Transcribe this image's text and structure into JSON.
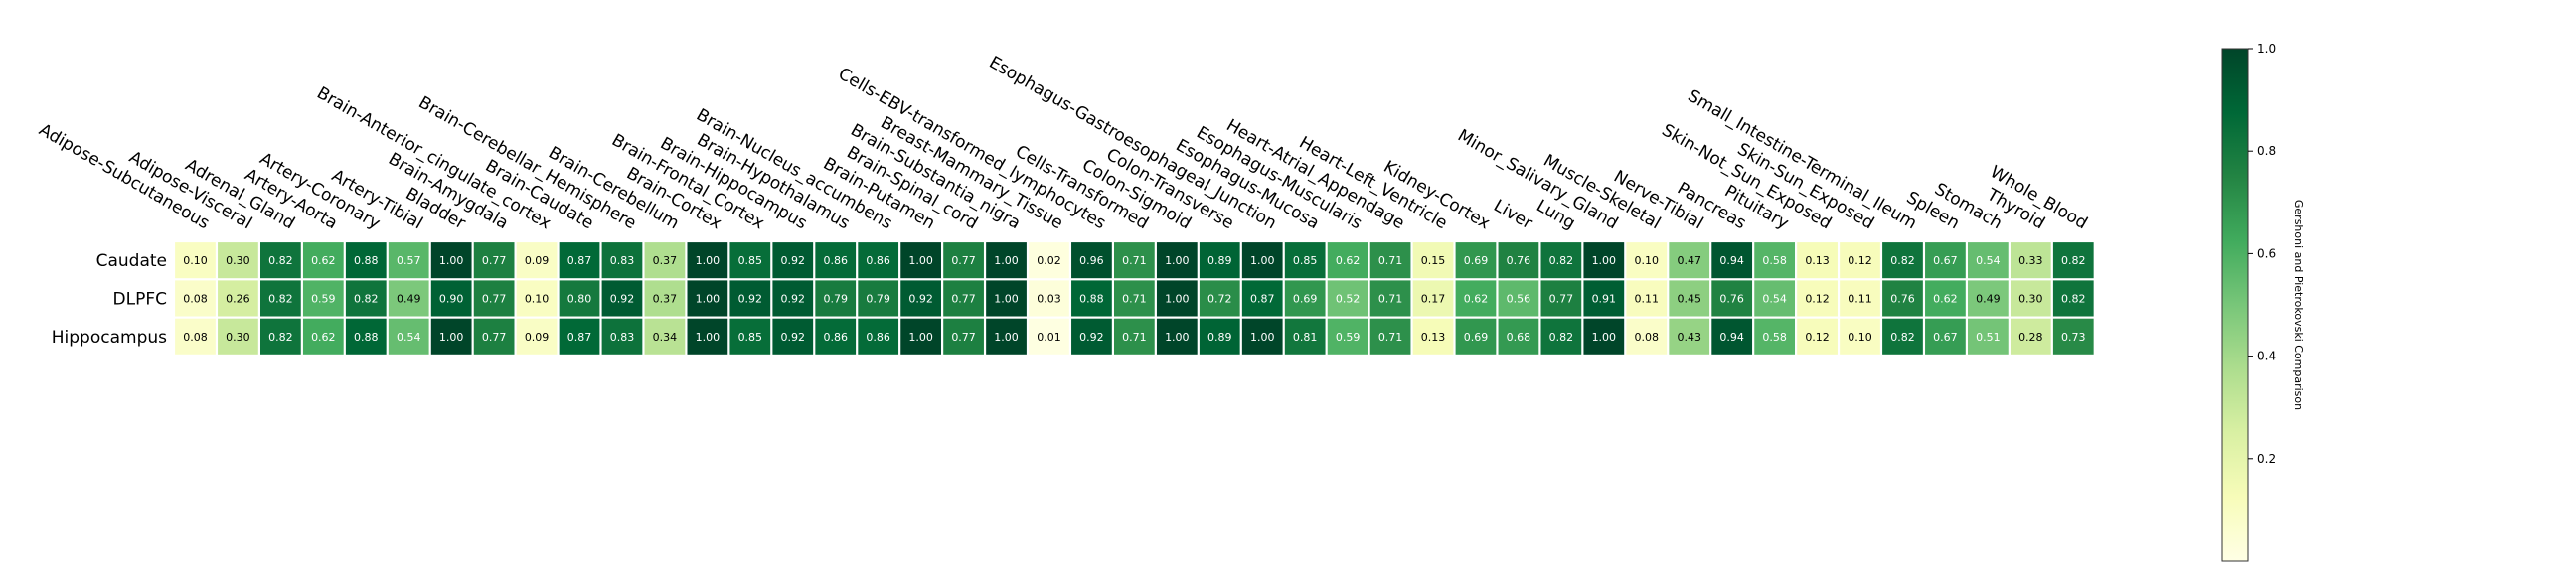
{
  "chart_data": {
    "type": "heatmap",
    "columns": [
      "Adipose-Subcutaneous",
      "Adipose-Visceral",
      "Adrenal_Gland",
      "Artery-Aorta",
      "Artery-Coronary",
      "Artery-Tibial",
      "Bladder",
      "Brain-Amygdala",
      "Brain-Anterior_cingulate_cortex",
      "Brain-Caudate",
      "Brain-Cerebellar_Hemisphere",
      "Brain-Cerebellum",
      "Brain-Cortex",
      "Brain-Frontal_Cortex",
      "Brain-Hippocampus",
      "Brain-Hypothalamus",
      "Brain-Nucleus_accumbens",
      "Brain-Putamen",
      "Brain-Spinal_cord",
      "Brain-Substantia_nigra",
      "Breast-Mammary_Tissue",
      "Cells-EBV-transformed_lymphocytes",
      "Cells-Transformed",
      "Colon-Sigmoid",
      "Colon-Transverse",
      "Esophagus-Gastroesophageal_Junction",
      "Esophagus-Mucosa",
      "Esophagus-Muscularis",
      "Heart-Atrial_Appendage",
      "Heart-Left_Ventricle",
      "Kidney-Cortex",
      "Liver",
      "Lung",
      "Minor_Salivary_Gland",
      "Muscle-Skeletal",
      "Nerve-Tibial",
      "Pancreas",
      "Pituitary",
      "Skin-Not_Sun_Exposed",
      "Skin-Sun_Exposed",
      "Small_Intestine-Terminal_Ileum",
      "Spleen",
      "Stomach",
      "Thyroid",
      "Whole_Blood"
    ],
    "rows": [
      "Caudate",
      "DLPFC",
      "Hippocampus"
    ],
    "values": [
      [
        0.1,
        0.3,
        0.82,
        0.62,
        0.88,
        0.57,
        1.0,
        0.77,
        0.09,
        0.87,
        0.83,
        0.37,
        1.0,
        0.85,
        0.92,
        0.86,
        0.86,
        1.0,
        0.77,
        1.0,
        0.02,
        0.96,
        0.71,
        1.0,
        0.89,
        1.0,
        0.85,
        0.62,
        0.71,
        0.15,
        0.69,
        0.76,
        0.82,
        1.0,
        0.1,
        0.47,
        0.94,
        0.58,
        0.13,
        0.12,
        0.82,
        0.67,
        0.54,
        0.33,
        0.82
      ],
      [
        0.08,
        0.26,
        0.82,
        0.59,
        0.82,
        0.49,
        0.9,
        0.77,
        0.1,
        0.8,
        0.92,
        0.37,
        1.0,
        0.92,
        0.92,
        0.79,
        0.79,
        0.92,
        0.77,
        1.0,
        0.03,
        0.88,
        0.71,
        1.0,
        0.72,
        0.87,
        0.69,
        0.52,
        0.71,
        0.17,
        0.62,
        0.56,
        0.77,
        0.91,
        0.11,
        0.45,
        0.76,
        0.54,
        0.12,
        0.11,
        0.76,
        0.62,
        0.49,
        0.3,
        0.82
      ],
      [
        0.08,
        0.3,
        0.82,
        0.62,
        0.88,
        0.54,
        1.0,
        0.77,
        0.09,
        0.87,
        0.83,
        0.34,
        1.0,
        0.85,
        0.92,
        0.86,
        0.86,
        1.0,
        0.77,
        1.0,
        0.01,
        0.92,
        0.71,
        1.0,
        0.89,
        1.0,
        0.81,
        0.59,
        0.71,
        0.13,
        0.69,
        0.68,
        0.82,
        1.0,
        0.08,
        0.43,
        0.94,
        0.58,
        0.12,
        0.1,
        0.82,
        0.67,
        0.51,
        0.28,
        0.73
      ]
    ],
    "colorbar": {
      "label": "Gershoni and Pietrokovski Comparison",
      "range": [
        0,
        1.0
      ],
      "ticks": [
        0.2,
        0.4,
        0.6,
        0.8,
        1.0
      ],
      "tick_labels": [
        "0.2",
        "0.4",
        "0.6",
        "0.8",
        "1.0"
      ],
      "colormap": "YlGn",
      "colors": [
        "#ffffe5",
        "#f7fcb9",
        "#d9f0a3",
        "#addd8e",
        "#78c679",
        "#41ab5d",
        "#238443",
        "#006837",
        "#004529"
      ]
    },
    "grid": false
  }
}
